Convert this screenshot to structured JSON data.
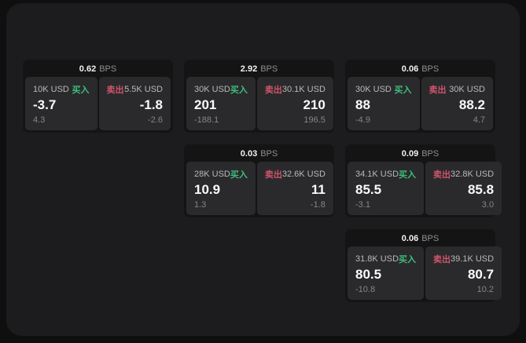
{
  "labels": {
    "buy": "买入",
    "sell": "卖出",
    "bps_unit": "BPS"
  },
  "colors": {
    "page_bg": "#0f0f0f",
    "surface_bg": "#1c1c1e",
    "card_bg": "#141414",
    "quote_panel_bg": "#2a2a2c",
    "buy_green": "#3ebd7d",
    "sell_red": "#d0546b",
    "value_white": "#fafafa",
    "muted_gray": "#858585"
  },
  "cards": [
    {
      "bps": "0.62",
      "buy": {
        "amount": "10K USD",
        "value": "-3.7",
        "change": "4.3"
      },
      "sell": {
        "amount": "5.5K USD",
        "value": "-1.8",
        "change": "-2.6"
      }
    },
    {
      "bps": "2.92",
      "buy": {
        "amount": "30K USD",
        "value": "201",
        "change": "-188.1"
      },
      "sell": {
        "amount": "30.1K USD",
        "value": "210",
        "change": "196.5"
      }
    },
    {
      "bps": "0.06",
      "buy": {
        "amount": "30K USD",
        "value": "88",
        "change": "-4.9"
      },
      "sell": {
        "amount": "30K USD",
        "value": "88.2",
        "change": "4.7"
      }
    },
    {
      "bps": "0.03",
      "buy": {
        "amount": "28K USD",
        "value": "10.9",
        "change": "1.3"
      },
      "sell": {
        "amount": "32.6K USD",
        "value": "11",
        "change": "-1.8"
      }
    },
    {
      "bps": "0.09",
      "buy": {
        "amount": "34.1K USD",
        "value": "85.5",
        "change": "-3.1"
      },
      "sell": {
        "amount": "32.8K USD",
        "value": "85.8",
        "change": "3.0"
      }
    },
    {
      "bps": "0.06",
      "buy": {
        "amount": "31.8K USD",
        "value": "80.5",
        "change": "-10.8"
      },
      "sell": {
        "amount": "39.1K USD",
        "value": "80.7",
        "change": "10.2"
      }
    }
  ]
}
